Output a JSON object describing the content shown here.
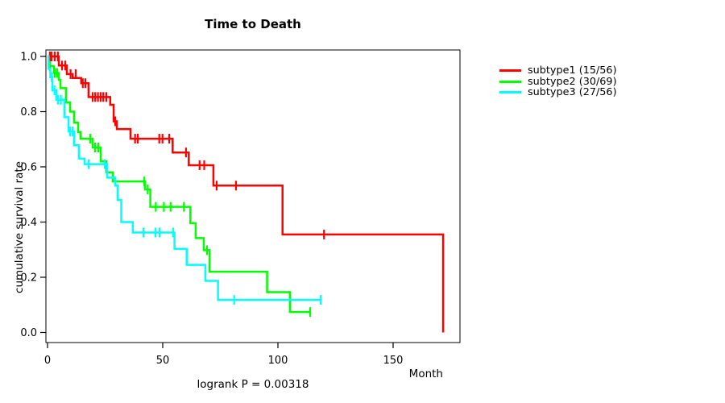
{
  "chart_data": {
    "type": "line",
    "subtype": "kaplan-meier-step",
    "title": "Time to Death",
    "xlabel": "Month",
    "ylabel": "cumulative survival rate",
    "annotation": "logrank P = 0.00318",
    "xlim": [
      0,
      179
    ],
    "ylim": [
      0,
      1.0
    ],
    "xticks": [
      0,
      50,
      100,
      150
    ],
    "xtick_labels": [
      "0",
      "50",
      "100",
      "150"
    ],
    "yticks": [
      0,
      0.2,
      0.4,
      0.6,
      0.8,
      1.0
    ],
    "ytick_labels": [
      "0.0",
      "0.2",
      "0.4",
      "0.6",
      "0.8",
      "1.0"
    ],
    "grid": false,
    "legend_position": "right-outside",
    "axis_color": "#000000",
    "series": [
      {
        "name": "subtype1 (15/56)",
        "color": "#FF0000",
        "end_time": 171.7,
        "steps": [
          [
            0,
            1.0
          ],
          [
            4.9,
            0.967
          ],
          [
            8.4,
            0.936
          ],
          [
            10.9,
            0.922
          ],
          [
            14.6,
            0.903
          ],
          [
            17.8,
            0.853
          ],
          [
            27.2,
            0.825
          ],
          [
            28.7,
            0.765
          ],
          [
            30.1,
            0.737
          ],
          [
            36,
            0.702
          ],
          [
            54.3,
            0.652
          ],
          [
            61.3,
            0.606
          ],
          [
            72,
            0.532
          ],
          [
            102,
            0.355
          ],
          [
            171.7,
            0.0
          ]
        ],
        "censor_marks": [
          [
            1,
            1.0
          ],
          [
            1.7,
            1.0
          ],
          [
            3.1,
            1.0
          ],
          [
            4.5,
            1.0
          ],
          [
            6.3,
            0.967
          ],
          [
            7.7,
            0.967
          ],
          [
            10,
            0.936
          ],
          [
            12.2,
            0.936
          ],
          [
            15.3,
            0.903
          ],
          [
            16.4,
            0.903
          ],
          [
            19.6,
            0.853
          ],
          [
            20.7,
            0.853
          ],
          [
            21.9,
            0.853
          ],
          [
            23.1,
            0.853
          ],
          [
            24.2,
            0.853
          ],
          [
            25.5,
            0.853
          ],
          [
            29.4,
            0.765
          ],
          [
            38,
            0.702
          ],
          [
            39.2,
            0.702
          ],
          [
            48.5,
            0.702
          ],
          [
            49.9,
            0.702
          ],
          [
            52.8,
            0.702
          ],
          [
            60.1,
            0.652
          ],
          [
            66,
            0.606
          ],
          [
            68,
            0.606
          ],
          [
            73.4,
            0.532
          ],
          [
            81.8,
            0.532
          ],
          [
            120,
            0.355
          ]
        ]
      },
      {
        "name": "subtype2 (30/69)",
        "color": "#00FF00",
        "end_time": 114,
        "steps": [
          [
            0,
            1.0
          ],
          [
            0.5,
            0.965
          ],
          [
            2.8,
            0.94
          ],
          [
            4.9,
            0.915
          ],
          [
            5.6,
            0.885
          ],
          [
            8,
            0.833
          ],
          [
            9.8,
            0.8
          ],
          [
            11.5,
            0.76
          ],
          [
            13.3,
            0.726
          ],
          [
            14.3,
            0.702
          ],
          [
            19.6,
            0.67
          ],
          [
            23.1,
            0.62
          ],
          [
            25.5,
            0.58
          ],
          [
            28.3,
            0.547
          ],
          [
            42.3,
            0.518
          ],
          [
            44.6,
            0.455
          ],
          [
            62,
            0.396
          ],
          [
            64.3,
            0.342
          ],
          [
            67.8,
            0.298
          ],
          [
            70.3,
            0.22
          ],
          [
            95.3,
            0.146
          ],
          [
            105.2,
            0.074
          ]
        ],
        "censor_marks": [
          [
            1,
            0.965
          ],
          [
            3.1,
            0.94
          ],
          [
            4.2,
            0.94
          ],
          [
            18.5,
            0.702
          ],
          [
            20.6,
            0.67
          ],
          [
            22,
            0.67
          ],
          [
            42,
            0.547
          ],
          [
            43.5,
            0.518
          ],
          [
            47,
            0.455
          ],
          [
            50.5,
            0.455
          ],
          [
            53.4,
            0.455
          ],
          [
            59.2,
            0.455
          ],
          [
            69.2,
            0.298
          ],
          [
            114,
            0.074
          ]
        ]
      },
      {
        "name": "subtype3 (27/56)",
        "color": "#00FFFF",
        "end_time": 118.5,
        "steps": [
          [
            0,
            1.0
          ],
          [
            0.4,
            0.955
          ],
          [
            1.2,
            0.925
          ],
          [
            2.1,
            0.877
          ],
          [
            3.8,
            0.843
          ],
          [
            7.3,
            0.78
          ],
          [
            9.1,
            0.728
          ],
          [
            11.5,
            0.678
          ],
          [
            13.6,
            0.63
          ],
          [
            16.1,
            0.61
          ],
          [
            25.9,
            0.561
          ],
          [
            29.4,
            0.532
          ],
          [
            30.4,
            0.48
          ],
          [
            32,
            0.4
          ],
          [
            37,
            0.362
          ],
          [
            55.1,
            0.303
          ],
          [
            60.4,
            0.245
          ],
          [
            68.5,
            0.187
          ],
          [
            74,
            0.118
          ]
        ],
        "censor_marks": [
          [
            1.8,
            0.925
          ],
          [
            3.0,
            0.877
          ],
          [
            4.5,
            0.843
          ],
          [
            5.8,
            0.843
          ],
          [
            9.8,
            0.728
          ],
          [
            10.8,
            0.728
          ],
          [
            17.8,
            0.61
          ],
          [
            24.8,
            0.61
          ],
          [
            41.6,
            0.362
          ],
          [
            46.9,
            0.362
          ],
          [
            48.6,
            0.362
          ],
          [
            54.5,
            0.362
          ],
          [
            81,
            0.118
          ],
          [
            118.5,
            0.118
          ]
        ]
      }
    ]
  }
}
